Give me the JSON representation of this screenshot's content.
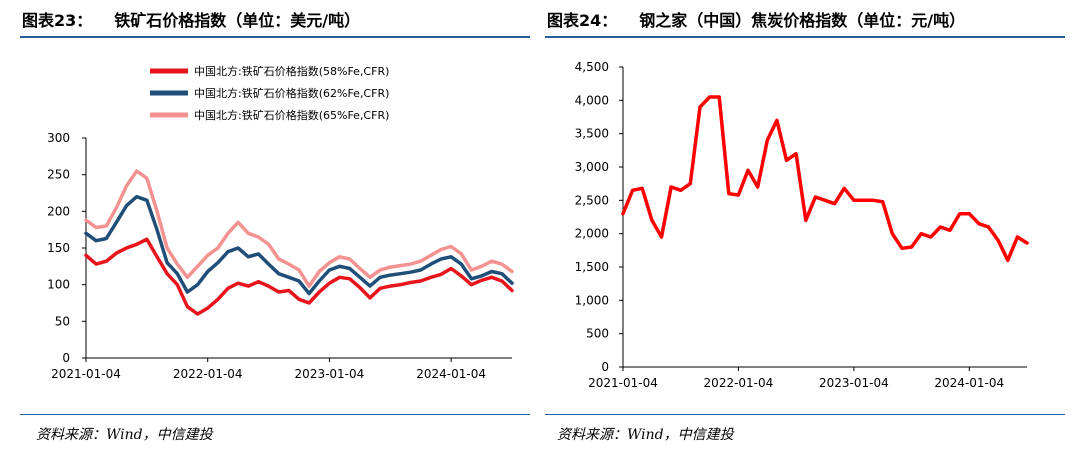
{
  "panels": {
    "left": {
      "figure_no": "图表23：",
      "title": "铁矿石价格指数（单位：美元/吨）",
      "source": "资料来源：Wind，中信建投"
    },
    "right": {
      "figure_no": "图表24：",
      "title": "钢之家（中国）焦炭价格指数（单位：元/吨）",
      "source": "资料来源：Wind，中信建投"
    }
  },
  "chart_data": [
    {
      "type": "line",
      "title": "铁矿石价格指数（单位：美元/吨）",
      "x_tick_labels": [
        "2021-01-04",
        "2022-01-04",
        "2023-01-04",
        "2024-01-04"
      ],
      "ylim": [
        0,
        300
      ],
      "y_ticks": [
        0,
        50,
        100,
        150,
        200,
        250,
        300
      ],
      "grid": false,
      "legend": "top-left",
      "x": [
        "2021-01",
        "2021-02",
        "2021-03",
        "2021-04",
        "2021-05",
        "2021-06",
        "2021-07",
        "2021-08",
        "2021-09",
        "2021-10",
        "2021-11",
        "2021-12",
        "2022-01",
        "2022-02",
        "2022-03",
        "2022-04",
        "2022-05",
        "2022-06",
        "2022-07",
        "2022-08",
        "2022-09",
        "2022-10",
        "2022-11",
        "2022-12",
        "2023-01",
        "2023-02",
        "2023-03",
        "2023-04",
        "2023-05",
        "2023-06",
        "2023-07",
        "2023-08",
        "2023-09",
        "2023-10",
        "2023-11",
        "2023-12",
        "2024-01",
        "2024-02",
        "2024-03",
        "2024-04",
        "2024-05",
        "2024-06",
        "2024-07"
      ],
      "series": [
        {
          "name": "中国北方:铁矿石价格指数(58%Fe,CFR)",
          "color": "#e8141b",
          "values": [
            140,
            128,
            132,
            143,
            150,
            155,
            162,
            138,
            115,
            100,
            70,
            60,
            68,
            80,
            95,
            102,
            98,
            104,
            98,
            90,
            92,
            80,
            75,
            90,
            102,
            110,
            108,
            96,
            82,
            95,
            98,
            100,
            103,
            105,
            110,
            114,
            122,
            112,
            100,
            106,
            110,
            105,
            92
          ]
        },
        {
          "name": "中国北方:铁矿石价格指数(62%Fe,CFR)",
          "color": "#1f4e79",
          "values": [
            170,
            160,
            163,
            185,
            208,
            220,
            215,
            175,
            130,
            115,
            90,
            100,
            118,
            130,
            145,
            150,
            138,
            142,
            128,
            115,
            110,
            105,
            88,
            105,
            120,
            125,
            122,
            110,
            98,
            110,
            113,
            115,
            117,
            120,
            128,
            135,
            138,
            128,
            108,
            112,
            118,
            115,
            102
          ]
        },
        {
          "name": "中国北方:铁矿石价格指数(65%Fe,CFR)",
          "color": "#f49191",
          "values": [
            188,
            178,
            180,
            205,
            235,
            255,
            245,
            200,
            150,
            128,
            110,
            125,
            140,
            150,
            170,
            185,
            170,
            165,
            155,
            135,
            128,
            120,
            98,
            118,
            130,
            138,
            135,
            122,
            110,
            120,
            124,
            126,
            128,
            132,
            140,
            148,
            152,
            142,
            120,
            125,
            132,
            128,
            118
          ]
        }
      ]
    },
    {
      "type": "line",
      "title": "钢之家（中国）焦炭价格指数（单位：元/吨）",
      "x_tick_labels": [
        "2021-01-04",
        "2022-01-04",
        "2023-01-04",
        "2024-01-04"
      ],
      "ylim": [
        0,
        4500
      ],
      "y_ticks": [
        0,
        500,
        1000,
        1500,
        2000,
        2500,
        3000,
        3500,
        4000,
        4500
      ],
      "grid": false,
      "legend": "none",
      "x": [
        "2021-01",
        "2021-02",
        "2021-03",
        "2021-04",
        "2021-05",
        "2021-06",
        "2021-07",
        "2021-08",
        "2021-09",
        "2021-10",
        "2021-11",
        "2021-12",
        "2022-01",
        "2022-02",
        "2022-03",
        "2022-04",
        "2022-05",
        "2022-06",
        "2022-07",
        "2022-08",
        "2022-09",
        "2022-10",
        "2022-11",
        "2022-12",
        "2023-01",
        "2023-02",
        "2023-03",
        "2023-04",
        "2023-05",
        "2023-06",
        "2023-07",
        "2023-08",
        "2023-09",
        "2023-10",
        "2023-11",
        "2023-12",
        "2024-01",
        "2024-02",
        "2024-03",
        "2024-04",
        "2024-05",
        "2024-06",
        "2024-07"
      ],
      "series": [
        {
          "name": "",
          "color": "#ff0000",
          "values": [
            2300,
            2650,
            2680,
            2200,
            1950,
            2700,
            2650,
            2750,
            3900,
            4050,
            4050,
            2600,
            2580,
            2950,
            2700,
            3400,
            3700,
            3100,
            3200,
            2200,
            2550,
            2500,
            2450,
            2680,
            2500,
            2500,
            2500,
            2480,
            2000,
            1780,
            1800,
            2000,
            1950,
            2100,
            2050,
            2300,
            2300,
            2150,
            2100,
            1900,
            1600,
            1950,
            1860
          ]
        }
      ]
    }
  ]
}
